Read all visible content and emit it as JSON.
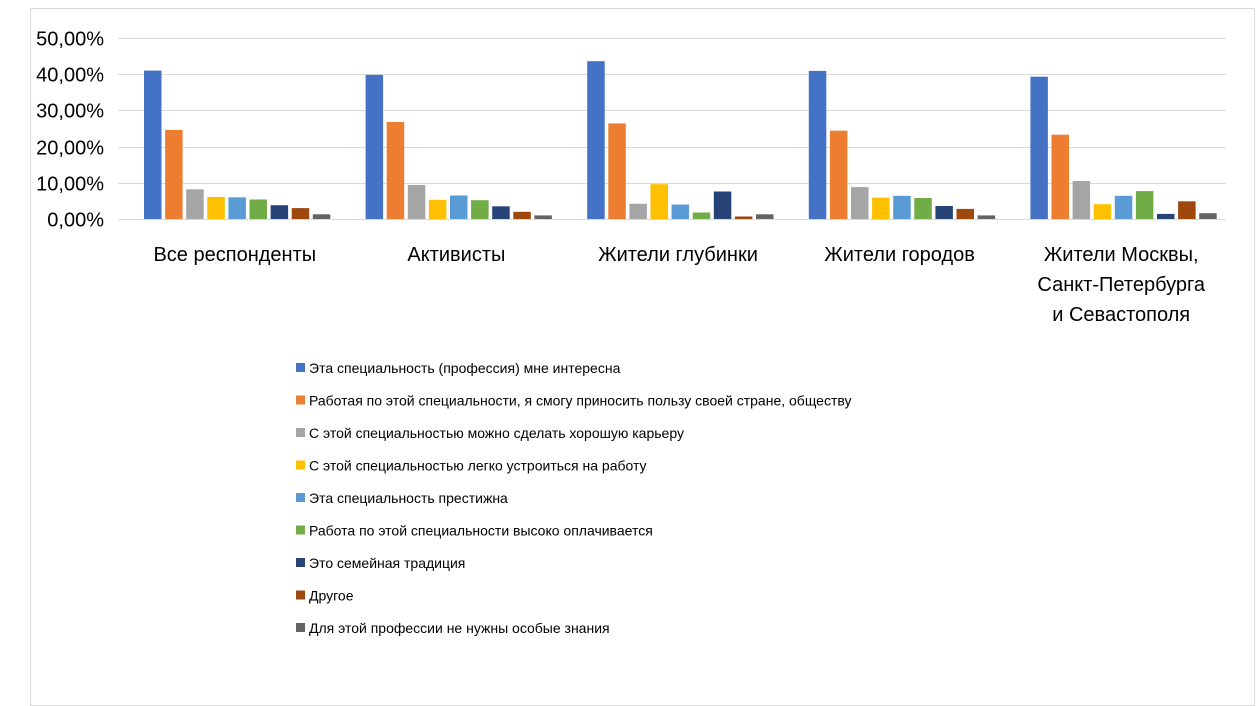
{
  "chart_data": {
    "type": "bar",
    "title": "",
    "xlabel": "",
    "ylabel": "",
    "ylim": [
      0,
      50
    ],
    "yticks": [
      "0,00%",
      "10,00%",
      "20,00%",
      "30,00%",
      "40,00%",
      "50,00%"
    ],
    "grid": true,
    "legend_position": "bottom",
    "categories": [
      [
        "Все респонденты"
      ],
      [
        "Активисты"
      ],
      [
        "Жители глубинки"
      ],
      [
        "Жители городов"
      ],
      [
        "Жители Москвы,",
        "Санкт-Петербурга",
        "и Севастополя"
      ]
    ],
    "series": [
      {
        "name": "Эта специальность (профессия) мне интересна",
        "color": "#4472c4",
        "values": [
          41.0,
          39.8,
          43.6,
          40.9,
          39.3
        ]
      },
      {
        "name": "Работая по этой специальности, я смогу приносить пользу своей стране, обществу",
        "color": "#ed7d31",
        "values": [
          24.6,
          26.8,
          26.4,
          24.4,
          23.3
        ]
      },
      {
        "name": "С этой специальностью можно сделать хорошую карьеру",
        "color": "#a5a5a5",
        "values": [
          8.2,
          9.4,
          4.2,
          8.8,
          10.5
        ]
      },
      {
        "name": "С этой специальностью легко устроиться на работу",
        "color": "#ffc000",
        "values": [
          6.1,
          5.3,
          9.6,
          5.9,
          4.1
        ]
      },
      {
        "name": "Эта специальность престижна",
        "color": "#5b9bd5",
        "values": [
          6.0,
          6.5,
          4.0,
          6.4,
          6.4
        ]
      },
      {
        "name": "Работа по этой специальности высоко оплачивается",
        "color": "#70ad47",
        "values": [
          5.4,
          5.2,
          1.8,
          5.8,
          7.7
        ]
      },
      {
        "name": "Это семейная традиция",
        "color": "#264478",
        "values": [
          3.8,
          3.5,
          7.6,
          3.6,
          1.4
        ]
      },
      {
        "name": "Другое",
        "color": "#9e480e",
        "values": [
          3.0,
          2.0,
          0.7,
          2.8,
          4.9
        ]
      },
      {
        "name": "Для этой профессии не нужны особые знания",
        "color": "#636363",
        "values": [
          1.3,
          1.0,
          1.3,
          1.0,
          1.6
        ]
      }
    ]
  }
}
